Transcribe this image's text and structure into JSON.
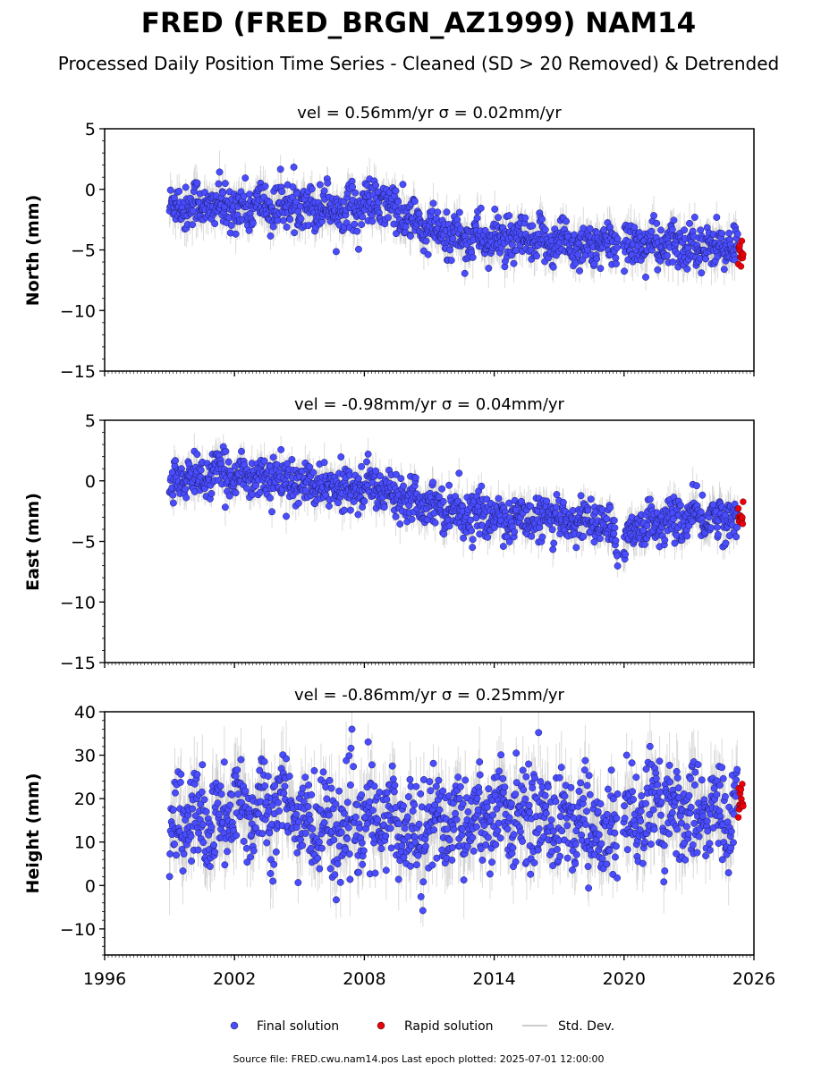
{
  "title": "FRED (FRED_BRGN_AZ1999) NAM14",
  "subtitle": "Processed Daily Position Time Series - Cleaned (SD > 20 Removed) & Detrended",
  "footer": "Source file: FRED.cwu.nam14.pos  Last epoch plotted: 2025-07-01 12:00:00",
  "legend": [
    {
      "label": "Final solution",
      "kind": "point",
      "color": "#4a4dff"
    },
    {
      "label": "Rapid solution",
      "kind": "point",
      "color": "#e8000b"
    },
    {
      "label": "Std. Dev.",
      "kind": "line",
      "color": "#cccccc"
    }
  ],
  "colors": {
    "final": "#4a4dff",
    "rapid": "#e8000b",
    "std_dev": "#bdbdbd",
    "axis": "#000000"
  },
  "chart_data": [
    {
      "type": "scatter",
      "title": "vel = 0.56mm/yr   σ = 0.02mm/yr",
      "ylabel": "North (mm)",
      "xlim": [
        1996,
        2026
      ],
      "ylim": [
        -15,
        5
      ],
      "yticks": [
        5,
        0,
        -5,
        -10,
        -15
      ],
      "ytick_labels": [
        "5",
        "0",
        "−5",
        "−10",
        "−15"
      ],
      "grid": false,
      "series": [
        {
          "name": "Final solution",
          "x": [
            1999.0,
            2000.0,
            2001.0,
            2002.0,
            2003.0,
            2004.0,
            2005.0,
            2006.0,
            2007.0,
            2008.0,
            2009.0,
            2010.0,
            2011.0,
            2012.0,
            2013.0,
            2014.0,
            2015.0,
            2016.0,
            2017.0,
            2018.0,
            2019.0,
            2019.8,
            2020.5,
            2021.0,
            2022.0,
            2023.0,
            2024.0,
            2025.0
          ],
          "y": [
            -1.5,
            -1.2,
            -1.4,
            -1.6,
            -1.3,
            -1.5,
            -1.2,
            -1.4,
            -1.6,
            -1.3,
            -1.2,
            -2.5,
            -3.5,
            -3.8,
            -4.0,
            -4.2,
            -4.3,
            -4.5,
            -4.2,
            -4.6,
            -4.8,
            -4.5,
            -4.4,
            -4.6,
            -4.8,
            -4.5,
            -4.7,
            -4.9
          ]
        },
        {
          "name": "Rapid solution",
          "x": [
            2025.3,
            2025.4,
            2025.5
          ],
          "y": [
            -5.0,
            -5.5,
            -5.2
          ]
        }
      ]
    },
    {
      "type": "scatter",
      "title": "vel = -0.98mm/yr   σ = 0.04mm/yr",
      "ylabel": "East (mm)",
      "xlim": [
        1996,
        2026
      ],
      "ylim": [
        -15,
        5
      ],
      "yticks": [
        5,
        0,
        -5,
        -10,
        -15
      ],
      "ytick_labels": [
        "5",
        "0",
        "−5",
        "−10",
        "−15"
      ],
      "grid": false,
      "series": [
        {
          "name": "Final solution",
          "x": [
            1999.0,
            2000.0,
            2001.0,
            2002.0,
            2003.0,
            2004.0,
            2005.0,
            2006.0,
            2007.0,
            2008.0,
            2009.0,
            2010.0,
            2011.0,
            2012.0,
            2013.0,
            2014.0,
            2015.0,
            2016.0,
            2017.0,
            2018.0,
            2019.0,
            2019.8,
            2020.5,
            2021.0,
            2022.0,
            2023.0,
            2024.0,
            2025.0
          ],
          "y": [
            -0.2,
            0.2,
            0.5,
            0.6,
            0.4,
            0.2,
            -0.3,
            -0.5,
            -0.6,
            -0.4,
            -0.8,
            -1.2,
            -1.8,
            -2.4,
            -2.8,
            -3.0,
            -3.1,
            -3.2,
            -3.3,
            -3.2,
            -3.4,
            -5.5,
            -3.8,
            -3.6,
            -3.3,
            -3.1,
            -3.0,
            -3.2
          ]
        },
        {
          "name": "Rapid solution",
          "x": [
            2025.3,
            2025.4,
            2025.5
          ],
          "y": [
            -2.8,
            -3.2,
            -3.0
          ]
        }
      ]
    },
    {
      "type": "scatter",
      "title": "vel = -0.86mm/yr   σ = 0.25mm/yr",
      "ylabel": "Height (mm)",
      "xlim": [
        1996,
        2026
      ],
      "ylim": [
        -16,
        40
      ],
      "yticks": [
        40,
        30,
        20,
        10,
        0,
        -10
      ],
      "ytick_labels": [
        "40",
        "30",
        "20",
        "10",
        "0",
        "−10"
      ],
      "grid": false,
      "series": [
        {
          "name": "Final solution",
          "x": [
            1999.0,
            2000.0,
            2001.0,
            2002.0,
            2003.0,
            2004.0,
            2005.0,
            2006.0,
            2007.0,
            2008.0,
            2009.0,
            2010.0,
            2011.0,
            2012.0,
            2013.0,
            2014.0,
            2015.0,
            2016.0,
            2017.0,
            2018.0,
            2019.0,
            2019.8,
            2020.5,
            2021.0,
            2022.0,
            2023.0,
            2024.0,
            2025.0
          ],
          "y": [
            14,
            15,
            13,
            17,
            18,
            19,
            15,
            14,
            13,
            14,
            15,
            13,
            14,
            15,
            16,
            16,
            17,
            16,
            15,
            15,
            12,
            14,
            16,
            17,
            18,
            17,
            16,
            17
          ]
        },
        {
          "name": "Rapid solution",
          "x": [
            2025.3,
            2025.4,
            2025.5
          ],
          "y": [
            19,
            21,
            18
          ]
        }
      ]
    }
  ],
  "x_axis": {
    "ticks": [
      1996,
      2002,
      2008,
      2014,
      2020,
      2026
    ],
    "tick_labels": [
      "1996",
      "2002",
      "2008",
      "2014",
      "2020",
      "2026"
    ]
  }
}
